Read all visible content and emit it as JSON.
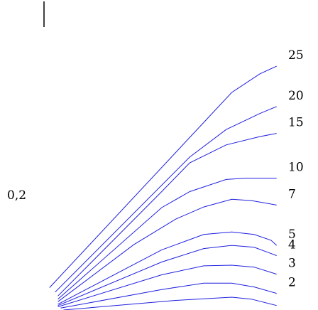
{
  "chart_data": {
    "type": "line",
    "title": "",
    "xlabel": "",
    "ylabel": "0,2",
    "line_color": "#1f1fe0",
    "text_color": "#000000",
    "grid": false,
    "legend": "labels at right end of each line",
    "series": [
      {
        "name": "25",
        "points": [
          [
            0.05,
            0.035
          ],
          [
            0.7,
            0.34
          ],
          [
            0.8,
            0.369
          ],
          [
            0.86,
            0.381
          ]
        ]
      },
      {
        "name": "20",
        "points": [
          [
            0.07,
            0.028
          ],
          [
            0.55,
            0.239
          ],
          [
            0.68,
            0.282
          ],
          [
            0.8,
            0.307
          ],
          [
            0.86,
            0.318
          ]
        ]
      },
      {
        "name": "15",
        "points": [
          [
            0.08,
            0.022
          ],
          [
            0.45,
            0.185
          ],
          [
            0.55,
            0.23
          ],
          [
            0.68,
            0.258
          ],
          [
            0.8,
            0.271
          ],
          [
            0.86,
            0.276
          ]
        ]
      },
      {
        "name": "10",
        "points": [
          [
            0.08,
            0.017
          ],
          [
            0.45,
            0.16
          ],
          [
            0.55,
            0.185
          ],
          [
            0.68,
            0.204
          ],
          [
            0.75,
            0.206
          ],
          [
            0.86,
            0.206
          ]
        ]
      },
      {
        "name": "7",
        "points": [
          [
            0.08,
            0.013
          ],
          [
            0.35,
            0.102
          ],
          [
            0.5,
            0.142
          ],
          [
            0.6,
            0.161
          ],
          [
            0.7,
            0.173
          ],
          [
            0.77,
            0.171
          ],
          [
            0.86,
            0.164
          ]
        ]
      },
      {
        "name": "5",
        "points": [
          [
            0.08,
            0.009
          ],
          [
            0.45,
            0.094
          ],
          [
            0.6,
            0.118
          ],
          [
            0.7,
            0.122
          ],
          [
            0.78,
            0.118
          ],
          [
            0.84,
            0.109
          ],
          [
            0.86,
            0.101
          ]
        ]
      },
      {
        "name": "4",
        "points": [
          [
            0.08,
            0.007
          ],
          [
            0.45,
            0.075
          ],
          [
            0.6,
            0.096
          ],
          [
            0.7,
            0.101
          ],
          [
            0.78,
            0.098
          ],
          [
            0.86,
            0.085
          ]
        ]
      },
      {
        "name": "3",
        "points": [
          [
            0.08,
            0.005
          ],
          [
            0.45,
            0.055
          ],
          [
            0.6,
            0.069
          ],
          [
            0.7,
            0.07
          ],
          [
            0.78,
            0.067
          ],
          [
            0.86,
            0.056
          ]
        ]
      },
      {
        "name": "2",
        "points": [
          [
            0.09,
            0.003
          ],
          [
            0.45,
            0.032
          ],
          [
            0.6,
            0.042
          ],
          [
            0.7,
            0.042
          ],
          [
            0.78,
            0.036
          ],
          [
            0.86,
            0.026
          ]
        ]
      },
      {
        "name": "",
        "points": [
          [
            0.1,
            0.0
          ],
          [
            0.5,
            0.015
          ],
          [
            0.7,
            0.02
          ],
          [
            0.77,
            0.017
          ],
          [
            0.86,
            0.007
          ]
        ]
      }
    ]
  }
}
